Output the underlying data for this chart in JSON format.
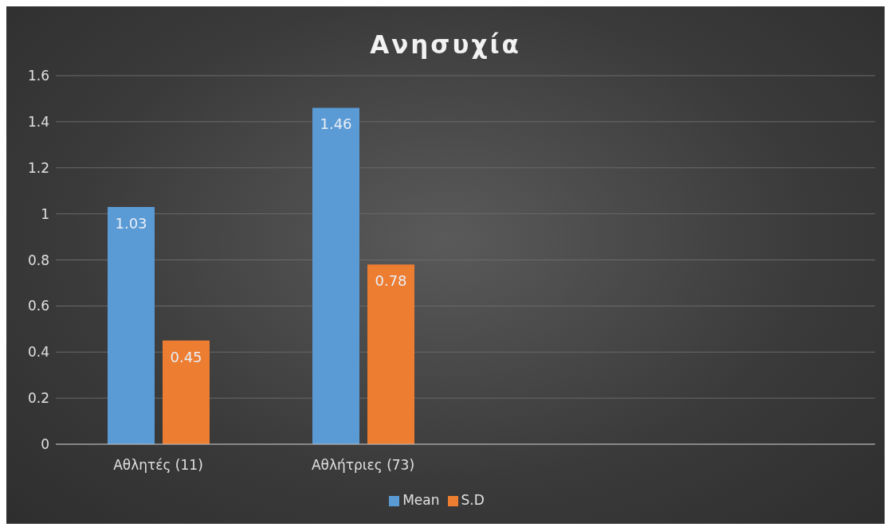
{
  "chart_data": {
    "type": "bar",
    "title": "Ανησυχία",
    "categories": [
      "Αθλητές (11)",
      "Αθλήτριες (73)",
      null,
      null
    ],
    "series": [
      {
        "name": "Mean",
        "color": "#5b9bd5",
        "values": [
          1.03,
          1.46,
          null,
          null
        ]
      },
      {
        "name": "S.D",
        "color": "#ed7d31",
        "values": [
          0.45,
          0.78,
          null,
          null
        ]
      }
    ],
    "ylim": [
      0,
      1.6
    ],
    "yticks": [
      0,
      0.2,
      0.4,
      0.6,
      0.8,
      1,
      1.2,
      1.4,
      1.6
    ],
    "grid": "y",
    "legend": "bottom",
    "data_labels": true
  }
}
